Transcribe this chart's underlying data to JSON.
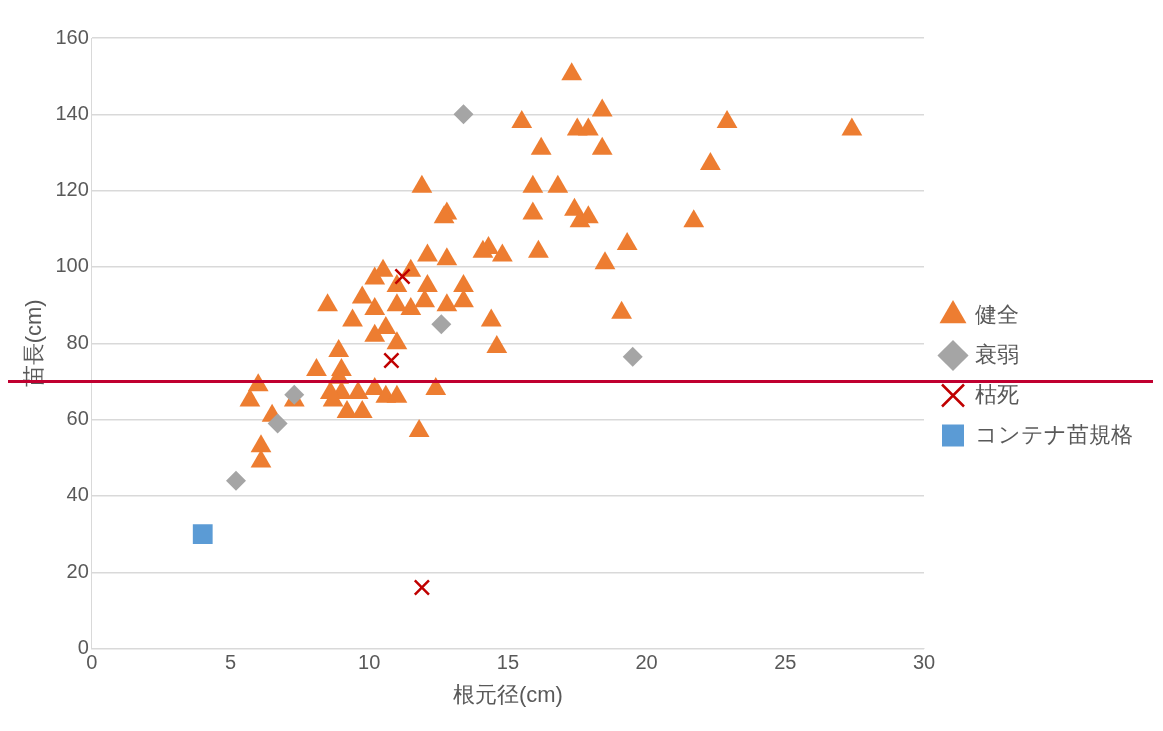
{
  "chart_data": {
    "type": "scatter",
    "xlabel": "根元径(cm)",
    "ylabel": "苗長(cm)",
    "xlim": [
      0,
      30
    ],
    "xticks": [
      0,
      5,
      10,
      15,
      20,
      25,
      30
    ],
    "ylim": [
      0,
      160
    ],
    "yticks": [
      0,
      20,
      40,
      60,
      80,
      100,
      120,
      140,
      160
    ],
    "grid": "y",
    "legend": "right",
    "ref_lines": [
      {
        "axis": "y",
        "value": 70,
        "color": "#c00030"
      }
    ],
    "series": [
      {
        "name": "健全",
        "color": "#ed7d31",
        "marker": "triangle",
        "x": [
          17.3,
          15.5,
          18.4,
          22.9,
          27.4,
          17.5,
          17.9,
          16.2,
          18.4,
          11.9,
          15.9,
          16.8,
          22.3,
          12.8,
          12.7,
          15.9,
          17.4,
          17.6,
          17.9,
          21.7,
          19.3,
          14.3,
          14.1,
          14.8,
          16.1,
          18.5,
          12.1,
          12.8,
          10.5,
          10.2,
          9.75,
          11.5,
          11.0,
          13.4,
          13.4,
          12.8,
          12.1,
          12.0,
          11.5,
          11.0,
          10.2,
          9.4,
          8.5,
          19.1,
          14.4,
          10.6,
          10.2,
          11.0,
          8.9,
          14.6,
          8.1,
          9.0,
          8.9,
          6.0,
          5.7,
          6.5,
          7.3,
          8.7,
          9.0,
          9.6,
          10.2,
          10.6,
          11.0,
          12.4,
          9.2,
          9.75,
          11.8,
          6.1,
          6.1,
          8.6
        ],
        "values": [
          150.5,
          138,
          141,
          138,
          136,
          136,
          136,
          131,
          131,
          121,
          121,
          121,
          127,
          114,
          113,
          114,
          115,
          112,
          113,
          112,
          106,
          105,
          104,
          103,
          104,
          101,
          103,
          102,
          99,
          97,
          92,
          99,
          95,
          95,
          91,
          90,
          95,
          91,
          89,
          90,
          89,
          86,
          90,
          88,
          86,
          84,
          82,
          80,
          78,
          79,
          73,
          73,
          71,
          69,
          65,
          61,
          65,
          65,
          67,
          67,
          68,
          66,
          66,
          68,
          62,
          62,
          57,
          53,
          49,
          67
        ]
      },
      {
        "name": "衰弱",
        "color": "#a5a5a5",
        "marker": "diamond",
        "x": [
          13.4,
          12.6,
          19.5,
          7.3,
          6.7,
          5.2
        ],
        "values": [
          140,
          85,
          76.5,
          66.5,
          59,
          44
        ]
      },
      {
        "name": "枯死",
        "color": "#c00000",
        "marker": "cross",
        "x": [
          11.2,
          10.8,
          11.9
        ],
        "values": [
          97.5,
          75.5,
          16
        ]
      },
      {
        "name": "コンテナ苗規格",
        "color": "#5b9bd5",
        "marker": "square",
        "x": [
          4.0
        ],
        "values": [
          30
        ]
      }
    ]
  }
}
